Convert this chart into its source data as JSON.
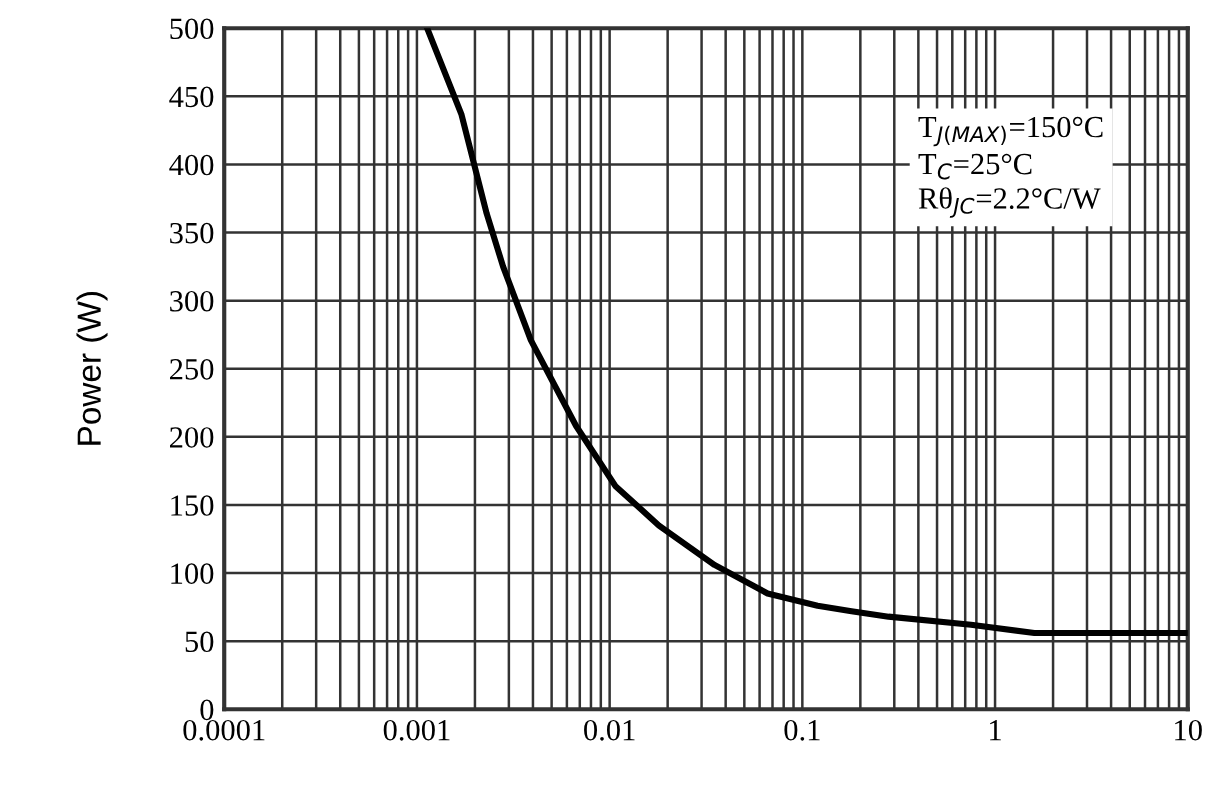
{
  "chart_data": {
    "type": "line",
    "ylabel": "Power (W)",
    "x": [
      0.00113,
      0.0017,
      0.0023,
      0.0028,
      0.0039,
      0.0067,
      0.0107,
      0.018,
      0.035,
      0.066,
      0.12,
      0.18,
      0.28,
      0.75,
      1.6,
      10
    ],
    "series": [
      {
        "color": "#000000",
        "values": [
          500,
          437,
          364,
          325,
          271,
          208,
          164,
          135,
          106,
          85,
          76,
          72,
          68,
          62,
          56,
          56
        ]
      }
    ],
    "log": "x",
    "xlim": [
      0.0001,
      10
    ],
    "xticks": [
      0.0001,
      0.001,
      0.01,
      0.1,
      1,
      10
    ],
    "ylim": [
      0,
      500
    ],
    "yticks": [
      0,
      50,
      100,
      150,
      200,
      250,
      300,
      350,
      400,
      450,
      500
    ],
    "grid": true,
    "marker": "none",
    "line_style": "solid",
    "annotations": [
      "T$_{J(MAX)}$=150°C\nT$_{C}$=25°C\nRθ$_{JC}$=2.2°C/W"
    ]
  }
}
